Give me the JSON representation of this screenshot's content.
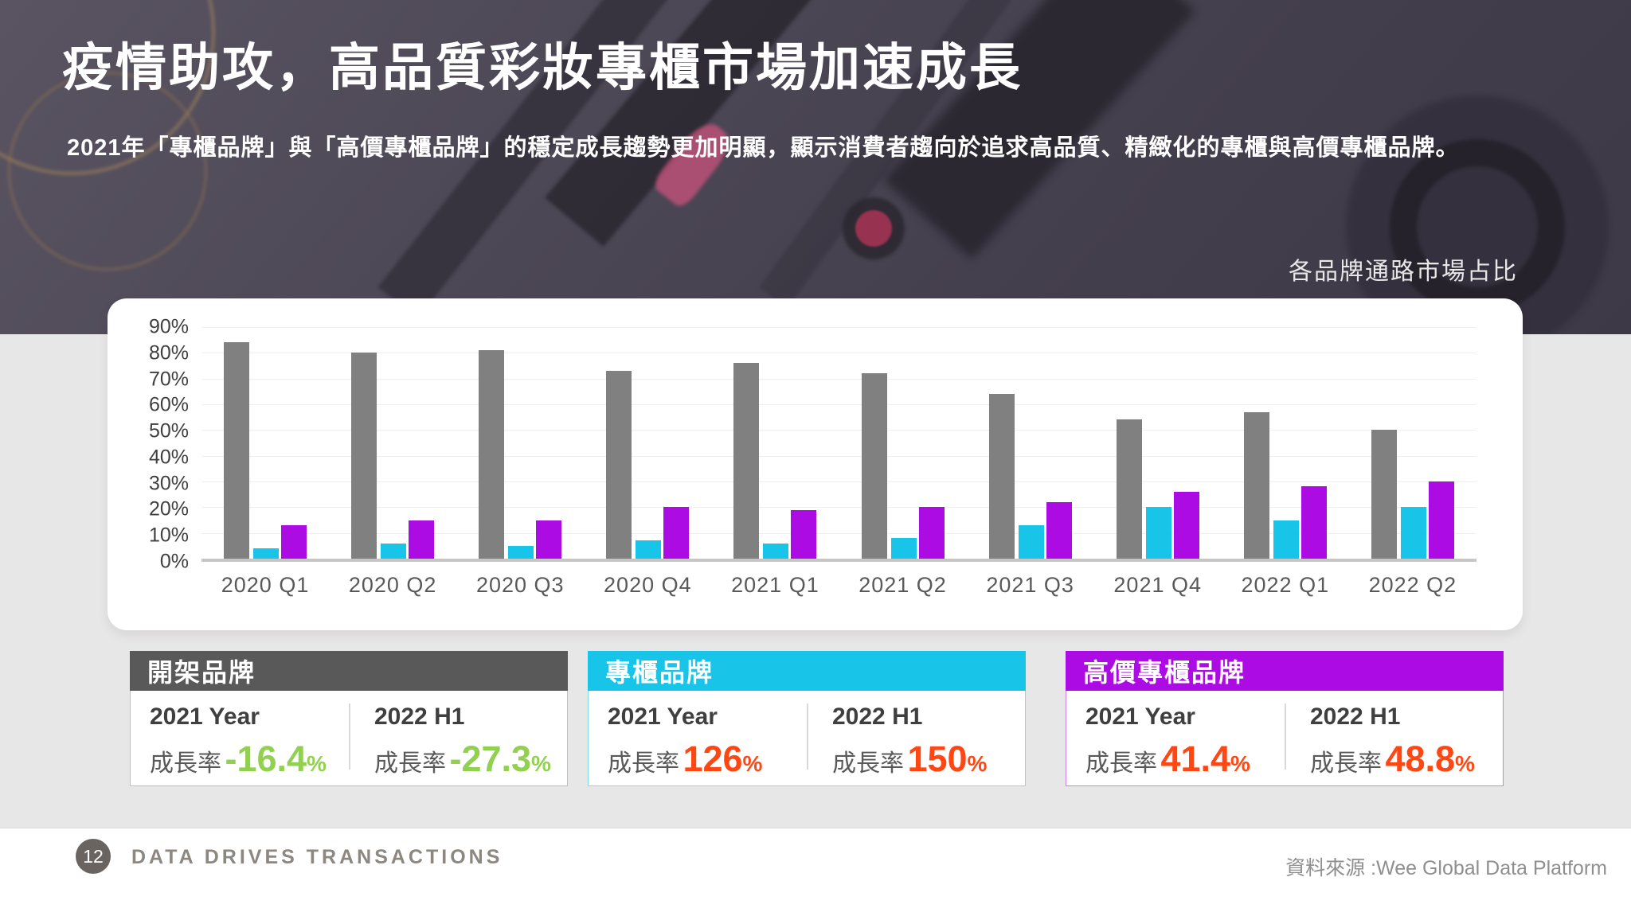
{
  "header": {
    "title": "疫情助攻，高品質彩妝專櫃市場加速成長",
    "subtitle": "2021年「專櫃品牌」與「高價專櫃品牌」的穩定成長趨勢更加明顯，顯示消費者趨向於追求高品質、精緻化的專櫃與高價專櫃品牌。",
    "chart_caption": "各品牌通路市場占比"
  },
  "chart_data": {
    "type": "bar",
    "title": "各品牌通路市場占比",
    "categories": [
      "2020 Q1",
      "2020 Q2",
      "2020 Q3",
      "2020 Q4",
      "2021 Q1",
      "2021 Q2",
      "2021 Q3",
      "2021 Q4",
      "2022 Q1",
      "2022 Q2"
    ],
    "series": [
      {
        "name": "開架品牌",
        "color": "#808080",
        "values": [
          84,
          80,
          81,
          73,
          76,
          72,
          64,
          54,
          57,
          50
        ]
      },
      {
        "name": "專櫃品牌",
        "color": "#18C4E8",
        "values": [
          4,
          6,
          5,
          7,
          6,
          8,
          13,
          20,
          15,
          20
        ]
      },
      {
        "name": "高價專櫃品牌",
        "color": "#AD0BE3",
        "values": [
          13,
          15,
          15,
          20,
          19,
          20,
          22,
          26,
          28,
          30
        ]
      }
    ],
    "xlabel": "",
    "ylabel": "",
    "ylim": [
      0,
      90
    ],
    "ytick_step": 10,
    "ytick_suffix": "%",
    "grid": true,
    "legend_position": "none"
  },
  "legend_cards": [
    {
      "name": "開架品牌",
      "header_color": "#595959",
      "value_color": "#92D050",
      "border_color": "#BFBFBF",
      "stats": [
        {
          "period": "2021 Year",
          "label": "成長率",
          "value": "-16.4",
          "unit": "%"
        },
        {
          "period": "2022 H1",
          "label": "成長率",
          "value": "-27.3",
          "unit": "%"
        }
      ]
    },
    {
      "name": "專櫃品牌",
      "header_color": "#18C4E8",
      "value_color": "#FF4713",
      "border_color": "#7FDCEF",
      "stats": [
        {
          "period": "2021 Year",
          "label": "成長率",
          "value": "126",
          "unit": "%"
        },
        {
          "period": "2022 H1",
          "label": "成長率",
          "value": "150",
          "unit": "%"
        }
      ]
    },
    {
      "name": "高價專櫃品牌",
      "header_color": "#AD0BE3",
      "value_color": "#FF4713",
      "border_color": "#CE7FEB",
      "stats": [
        {
          "period": "2021 Year",
          "label": "成長率",
          "value": "41.4",
          "unit": "%"
        },
        {
          "period": "2022 H1",
          "label": "成長率",
          "value": "48.8",
          "unit": "%"
        }
      ]
    }
  ],
  "footer": {
    "page_number": "12",
    "logo_text": "DATA DRIVES TRANSACTIONS",
    "source": "資料來源 :Wee Global Data Platform"
  }
}
